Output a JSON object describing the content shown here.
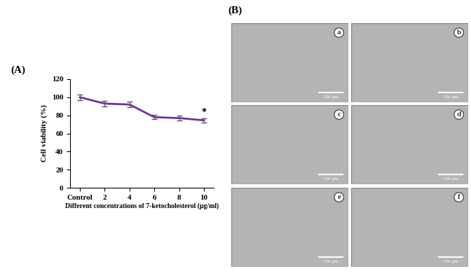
{
  "chart_data": {
    "type": "line",
    "panel_label": "(A)",
    "x_label": "Different concentrations of 7-ketocholesterol (µg/ml)",
    "y_label": "Cell viability (%)",
    "categories": [
      "Control",
      "2",
      "4",
      "6",
      "8",
      "10"
    ],
    "values": [
      100,
      93,
      92,
      78,
      77,
      74.5
    ],
    "errors": [
      3,
      3,
      3,
      2.5,
      2.5,
      2.5
    ],
    "color": "#7030a0",
    "ylim": [
      0,
      120
    ],
    "yticks": [
      0,
      20,
      40,
      60,
      80,
      100,
      120
    ],
    "grid": false,
    "annotations": [
      {
        "text": "*",
        "x": "10"
      }
    ]
  },
  "image_panel": {
    "panel_label": "(B)",
    "images": [
      {
        "label": "a",
        "scale_bar": "100 µm"
      },
      {
        "label": "b",
        "scale_bar": "100 µm"
      },
      {
        "label": "c",
        "scale_bar": "100 µm"
      },
      {
        "label": "d",
        "scale_bar": "100 µm"
      },
      {
        "label": "e",
        "scale_bar": "100 µm"
      },
      {
        "label": "f",
        "scale_bar": "100 µm"
      }
    ]
  }
}
